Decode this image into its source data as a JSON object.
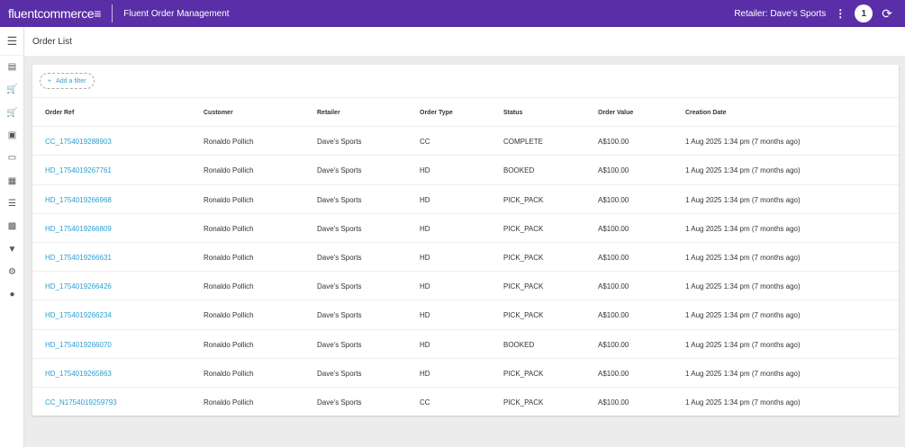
{
  "topbar": {
    "logo_a": "fluent",
    "logo_b": "commerce",
    "app_title": "Fluent Order Management",
    "retailer": "Retailer: Dave's Sports",
    "badge": "1"
  },
  "page": {
    "title": "Order List"
  },
  "filter": {
    "label": "Add a filter"
  },
  "sidebar": {
    "icons": [
      "analytics-icon",
      "order-icon",
      "cart-icon",
      "fulfilment-icon",
      "card-icon",
      "dashboard-icon",
      "list-icon",
      "location-icon",
      "inventory-icon",
      "settings-icon",
      "lightbulb-icon"
    ]
  },
  "colors": {
    "topbar": "#5a2ea6",
    "link": "#2a9fd0"
  },
  "table": {
    "headers": [
      "Order Ref",
      "Customer",
      "Retailer",
      "Order Type",
      "Status",
      "Order Value",
      "Creation Date"
    ],
    "rows": [
      [
        "CC_1754019288903",
        "Ronaldo Pollich",
        "Dave's Sports",
        "CC",
        "COMPLETE",
        "A$100.00",
        "1 Aug 2025 1:34 pm (7 months ago)"
      ],
      [
        "HD_1754019267761",
        "Ronaldo Pollich",
        "Dave's Sports",
        "HD",
        "BOOKED",
        "A$100.00",
        "1 Aug 2025 1:34 pm (7 months ago)"
      ],
      [
        "HD_1754019266968",
        "Ronaldo Pollich",
        "Dave's Sports",
        "HD",
        "PICK_PACK",
        "A$100.00",
        "1 Aug 2025 1:34 pm (7 months ago)"
      ],
      [
        "HD_1754019266809",
        "Ronaldo Pollich",
        "Dave's Sports",
        "HD",
        "PICK_PACK",
        "A$100.00",
        "1 Aug 2025 1:34 pm (7 months ago)"
      ],
      [
        "HD_1754019266631",
        "Ronaldo Pollich",
        "Dave's Sports",
        "HD",
        "PICK_PACK",
        "A$100.00",
        "1 Aug 2025 1:34 pm (7 months ago)"
      ],
      [
        "HD_1754019266426",
        "Ronaldo Pollich",
        "Dave's Sports",
        "HD",
        "PICK_PACK",
        "A$100.00",
        "1 Aug 2025 1:34 pm (7 months ago)"
      ],
      [
        "HD_1754019266234",
        "Ronaldo Pollich",
        "Dave's Sports",
        "HD",
        "PICK_PACK",
        "A$100.00",
        "1 Aug 2025 1:34 pm (7 months ago)"
      ],
      [
        "HD_1754019266070",
        "Ronaldo Pollich",
        "Dave's Sports",
        "HD",
        "BOOKED",
        "A$100.00",
        "1 Aug 2025 1:34 pm (7 months ago)"
      ],
      [
        "HD_1754019265863",
        "Ronaldo Pollich",
        "Dave's Sports",
        "HD",
        "PICK_PACK",
        "A$100.00",
        "1 Aug 2025 1:34 pm (7 months ago)"
      ],
      [
        "CC_N1754019259793",
        "Ronaldo Pollich",
        "Dave's Sports",
        "CC",
        "PICK_PACK",
        "A$100.00",
        "1 Aug 2025 1:34 pm (7 months ago)"
      ]
    ]
  }
}
